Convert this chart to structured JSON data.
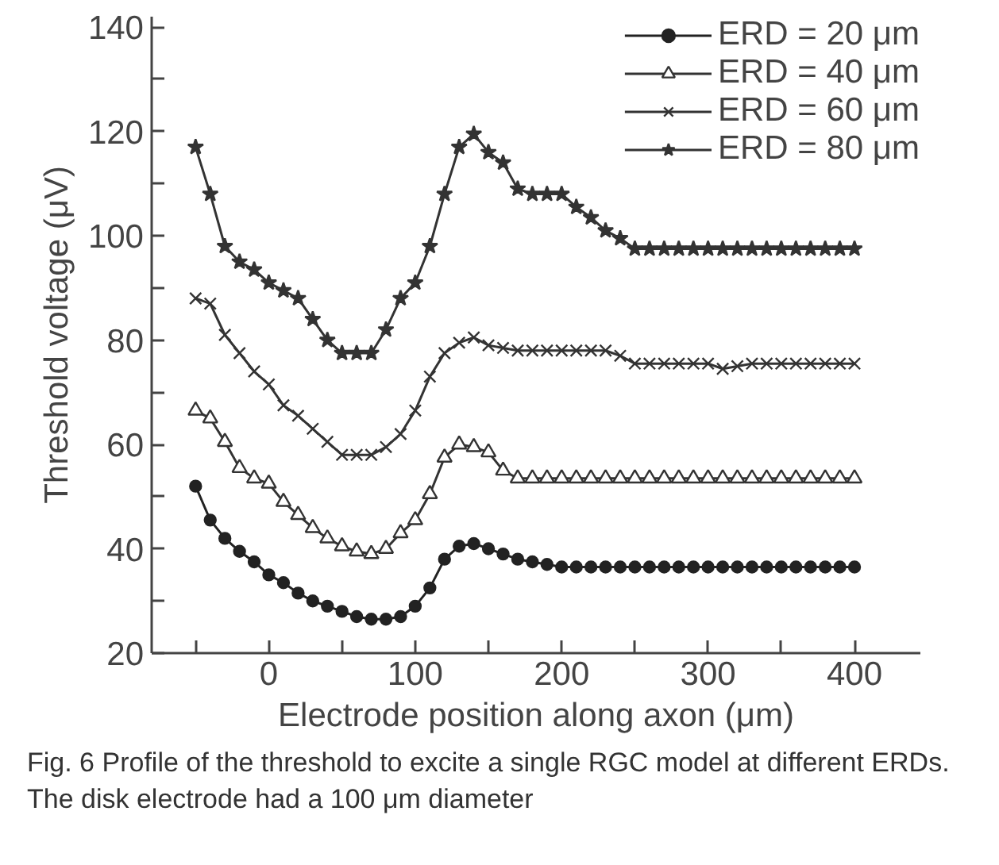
{
  "chart_data": {
    "type": "line",
    "xlabel": "Electrode position along axon (μm)",
    "ylabel": "Threshold voltage (μV)",
    "annotations": [
      "Fig. 6 Profile of the threshold to excite a single RGC model at different ERDs. The disk electrode had a 100 μm diameter"
    ],
    "x": [
      -50,
      -40,
      -30,
      -20,
      -10,
      0,
      10,
      20,
      30,
      40,
      50,
      60,
      70,
      80,
      90,
      100,
      110,
      120,
      130,
      140,
      150,
      160,
      170,
      180,
      190,
      200,
      210,
      220,
      230,
      240,
      250,
      260,
      270,
      280,
      290,
      300,
      310,
      320,
      330,
      340,
      350,
      360,
      370,
      380,
      390,
      400
    ],
    "series": [
      {
        "name": "ERD = 20 μm",
        "color": "#222222",
        "marker": "circle",
        "values": [
          52,
          45.5,
          42,
          39.5,
          37.5,
          35,
          33.5,
          31.5,
          30,
          29,
          28,
          27,
          26.5,
          26.5,
          27,
          29,
          32.5,
          38,
          40.5,
          41,
          40,
          39,
          38,
          37.5,
          37,
          36.5,
          36.5,
          36.5,
          36.5,
          36.5,
          36.5,
          36.5,
          36.5,
          36.5,
          36.5,
          36.5,
          36.5,
          36.5,
          36.5,
          36.5,
          36.5,
          36.5,
          36.5,
          36.5,
          36.5,
          36.5
        ]
      },
      {
        "name": "ERD = 40 μm",
        "color": "#333333",
        "marker": "triangle",
        "values": [
          66.5,
          65,
          60.5,
          55.5,
          53.5,
          52.5,
          49,
          46.5,
          44,
          42,
          40.5,
          39.5,
          39,
          40,
          43,
          45.5,
          50.5,
          57.5,
          60,
          59.5,
          58.5,
          55,
          53.5,
          53.5,
          53.5,
          53.5,
          53.5,
          53.5,
          53.5,
          53.5,
          53.5,
          53.5,
          53.5,
          53.5,
          53.5,
          53.5,
          53.5,
          53.5,
          53.5,
          53.5,
          53.5,
          53.5,
          53.5,
          53.5,
          53.5,
          53.5
        ]
      },
      {
        "name": "ERD = 60 μm",
        "color": "#333333",
        "marker": "cross",
        "values": [
          88,
          87,
          81,
          77.5,
          74,
          71.5,
          67.5,
          65.5,
          63,
          60.5,
          58,
          58,
          58,
          59.5,
          62,
          66.5,
          73,
          77.5,
          79.5,
          80.5,
          79,
          78.5,
          78,
          78,
          78,
          78,
          78,
          78,
          78,
          77,
          75.5,
          75.5,
          75.5,
          75.5,
          75.5,
          75.5,
          74.5,
          75,
          75.5,
          75.5,
          75.5,
          75.5,
          75.5,
          75.5,
          75.5,
          75.5
        ]
      },
      {
        "name": "ERD = 80 μm",
        "color": "#333333",
        "marker": "star",
        "values": [
          117,
          108,
          98,
          95,
          93.5,
          91,
          89.5,
          88,
          84,
          80,
          77.5,
          77.5,
          77.5,
          82,
          88,
          91,
          98,
          108,
          117,
          119.5,
          116,
          114,
          109,
          108,
          108,
          108,
          105.5,
          103.5,
          101,
          99.5,
          97.5,
          97.5,
          97.5,
          97.5,
          97.5,
          97.5,
          97.5,
          97.5,
          97.5,
          97.5,
          97.5,
          97.5,
          97.5,
          97.5,
          97.5,
          97.5
        ]
      }
    ],
    "xlim": [
      -80,
      445
    ],
    "ylim": [
      20,
      142
    ],
    "xticks": [
      {
        "value": -50,
        "label": null
      },
      0,
      {
        "value": 50,
        "label": null
      },
      100,
      {
        "value": 150,
        "label": null
      },
      200,
      {
        "value": 250,
        "label": null
      },
      300,
      {
        "value": 350,
        "label": null
      },
      400
    ],
    "yticks": [
      20,
      {
        "value": 30,
        "label": null
      },
      40,
      {
        "value": 50,
        "label": null
      },
      60,
      {
        "value": 70,
        "label": null
      },
      80,
      {
        "value": 90,
        "label": null
      },
      100,
      {
        "value": 110,
        "label": null
      },
      120,
      {
        "value": 130,
        "label": null
      },
      140
    ],
    "grid": false,
    "legend": "top right",
    "line_style": "solid"
  }
}
